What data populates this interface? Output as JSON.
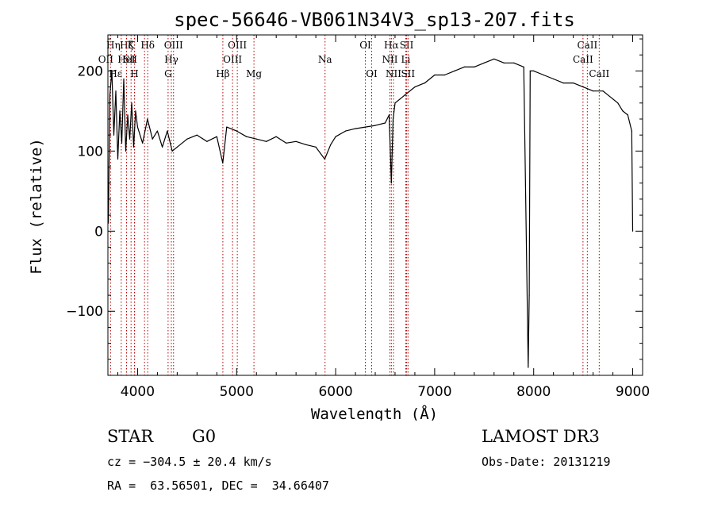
{
  "chart_data": {
    "type": "line",
    "title": "spec-56646-VB061N34V3_sp13-207.fits",
    "xlabel": "Wavelength (Å)",
    "ylabel": "Flux (relative)",
    "xlim": [
      3700,
      9100
    ],
    "ylim": [
      -180,
      245
    ],
    "x_ticks": [
      4000,
      5000,
      6000,
      7000,
      8000,
      9000
    ],
    "y_ticks": [
      -100,
      0,
      100,
      200
    ],
    "x_tick_labels": [
      "4000",
      "5000",
      "6000",
      "7000",
      "8000",
      "9000"
    ],
    "y_tick_labels": [
      "−100",
      "0",
      "100",
      "200"
    ],
    "grid": false,
    "series": [
      {
        "name": "flux",
        "x": [
          3705,
          3720,
          3740,
          3760,
          3780,
          3800,
          3820,
          3840,
          3860,
          3880,
          3900,
          3920,
          3940,
          3960,
          3980,
          4000,
          4050,
          4100,
          4150,
          4200,
          4250,
          4300,
          4350,
          4400,
          4500,
          4600,
          4700,
          4800,
          4860,
          4900,
          5000,
          5100,
          5200,
          5300,
          5400,
          5500,
          5600,
          5700,
          5800,
          5890,
          5950,
          6000,
          6100,
          6200,
          6300,
          6400,
          6500,
          6540,
          6563,
          6580,
          6600,
          6650,
          6700,
          6800,
          6900,
          7000,
          7100,
          7200,
          7300,
          7400,
          7500,
          7600,
          7700,
          7800,
          7900,
          7945,
          7955,
          7965,
          8000,
          8100,
          8200,
          8300,
          8400,
          8500,
          8600,
          8700,
          8800,
          8850,
          8900,
          8950,
          8990,
          9000
        ],
        "y": [
          10,
          170,
          200,
          120,
          175,
          90,
          150,
          110,
          190,
          100,
          145,
          115,
          160,
          105,
          150,
          130,
          110,
          140,
          115,
          125,
          105,
          125,
          100,
          105,
          115,
          120,
          112,
          118,
          85,
          130,
          125,
          118,
          115,
          112,
          118,
          110,
          112,
          108,
          105,
          90,
          108,
          118,
          125,
          128,
          130,
          132,
          135,
          145,
          60,
          140,
          160,
          165,
          170,
          180,
          185,
          195,
          195,
          200,
          205,
          205,
          210,
          215,
          210,
          210,
          205,
          -170,
          -80,
          200,
          200,
          195,
          190,
          185,
          185,
          180,
          175,
          175,
          165,
          160,
          150,
          145,
          125,
          0
        ]
      }
    ],
    "lines": [
      {
        "name": "Hη",
        "x": 3835,
        "row": 0,
        "dx": -10
      },
      {
        "name": "Hζ",
        "x": 3889,
        "row": 0,
        "dx": 0
      },
      {
        "name": "K",
        "x": 3934,
        "row": 0,
        "dx": 0
      },
      {
        "name": "Hδ",
        "x": 4102,
        "row": 0,
        "dx": 0
      },
      {
        "name": "OIII",
        "x": 4363,
        "row": 0,
        "dx": 0
      },
      {
        "name": "OIII",
        "x": 5007,
        "row": 0,
        "dx": 0
      },
      {
        "name": "OI",
        "x": 6300,
        "row": 0,
        "dx": 0
      },
      {
        "name": "Hα",
        "x": 6563,
        "row": 0,
        "dx": 0
      },
      {
        "name": "SII",
        "x": 6717,
        "row": 0,
        "dx": 0
      },
      {
        "name": "CaII",
        "x": 8542,
        "row": 0,
        "dx": 0
      },
      {
        "name": "OII",
        "x": 3727,
        "row": 1,
        "dx": -6
      },
      {
        "name": "HeI",
        "x": 3888,
        "row": 1,
        "dx": 0
      },
      {
        "name": "SII",
        "x": 4070,
        "row": 1,
        "dx": -18
      },
      {
        "name": "Hγ",
        "x": 4341,
        "row": 1,
        "dx": 0
      },
      {
        "name": "OIII",
        "x": 4959,
        "row": 1,
        "dx": 0
      },
      {
        "name": "Na",
        "x": 5893,
        "row": 1,
        "dx": 0
      },
      {
        "name": "NII",
        "x": 6548,
        "row": 1,
        "dx": 0
      },
      {
        "name": "Li",
        "x": 6708,
        "row": 1,
        "dx": 0
      },
      {
        "name": "CaII",
        "x": 8498,
        "row": 1,
        "dx": 0
      },
      {
        "name": "Hε",
        "x": 3970,
        "row": 2,
        "dx": -24
      },
      {
        "name": "H",
        "x": 3968,
        "row": 2,
        "dx": 0
      },
      {
        "name": "G",
        "x": 4308,
        "row": 2,
        "dx": 0
      },
      {
        "name": "Hβ",
        "x": 4861,
        "row": 2,
        "dx": 0
      },
      {
        "name": "Mg",
        "x": 5175,
        "row": 2,
        "dx": 0
      },
      {
        "name": "OI",
        "x": 6364,
        "row": 2,
        "dx": 0
      },
      {
        "name": "NII",
        "x": 6584,
        "row": 2,
        "dx": 0
      },
      {
        "name": "SII",
        "x": 6731,
        "row": 2,
        "dx": 0
      },
      {
        "name": "CaII",
        "x": 8662,
        "row": 2,
        "dx": 0
      }
    ]
  },
  "info": {
    "class": "STAR",
    "subclass": "G0",
    "survey": "LAMOST DR3",
    "cz": "cz = −304.5 ± 20.4 km/s",
    "obs_date": "Obs-Date: 20131219",
    "radec": "RA =  63.56501, DEC =  34.66407"
  }
}
